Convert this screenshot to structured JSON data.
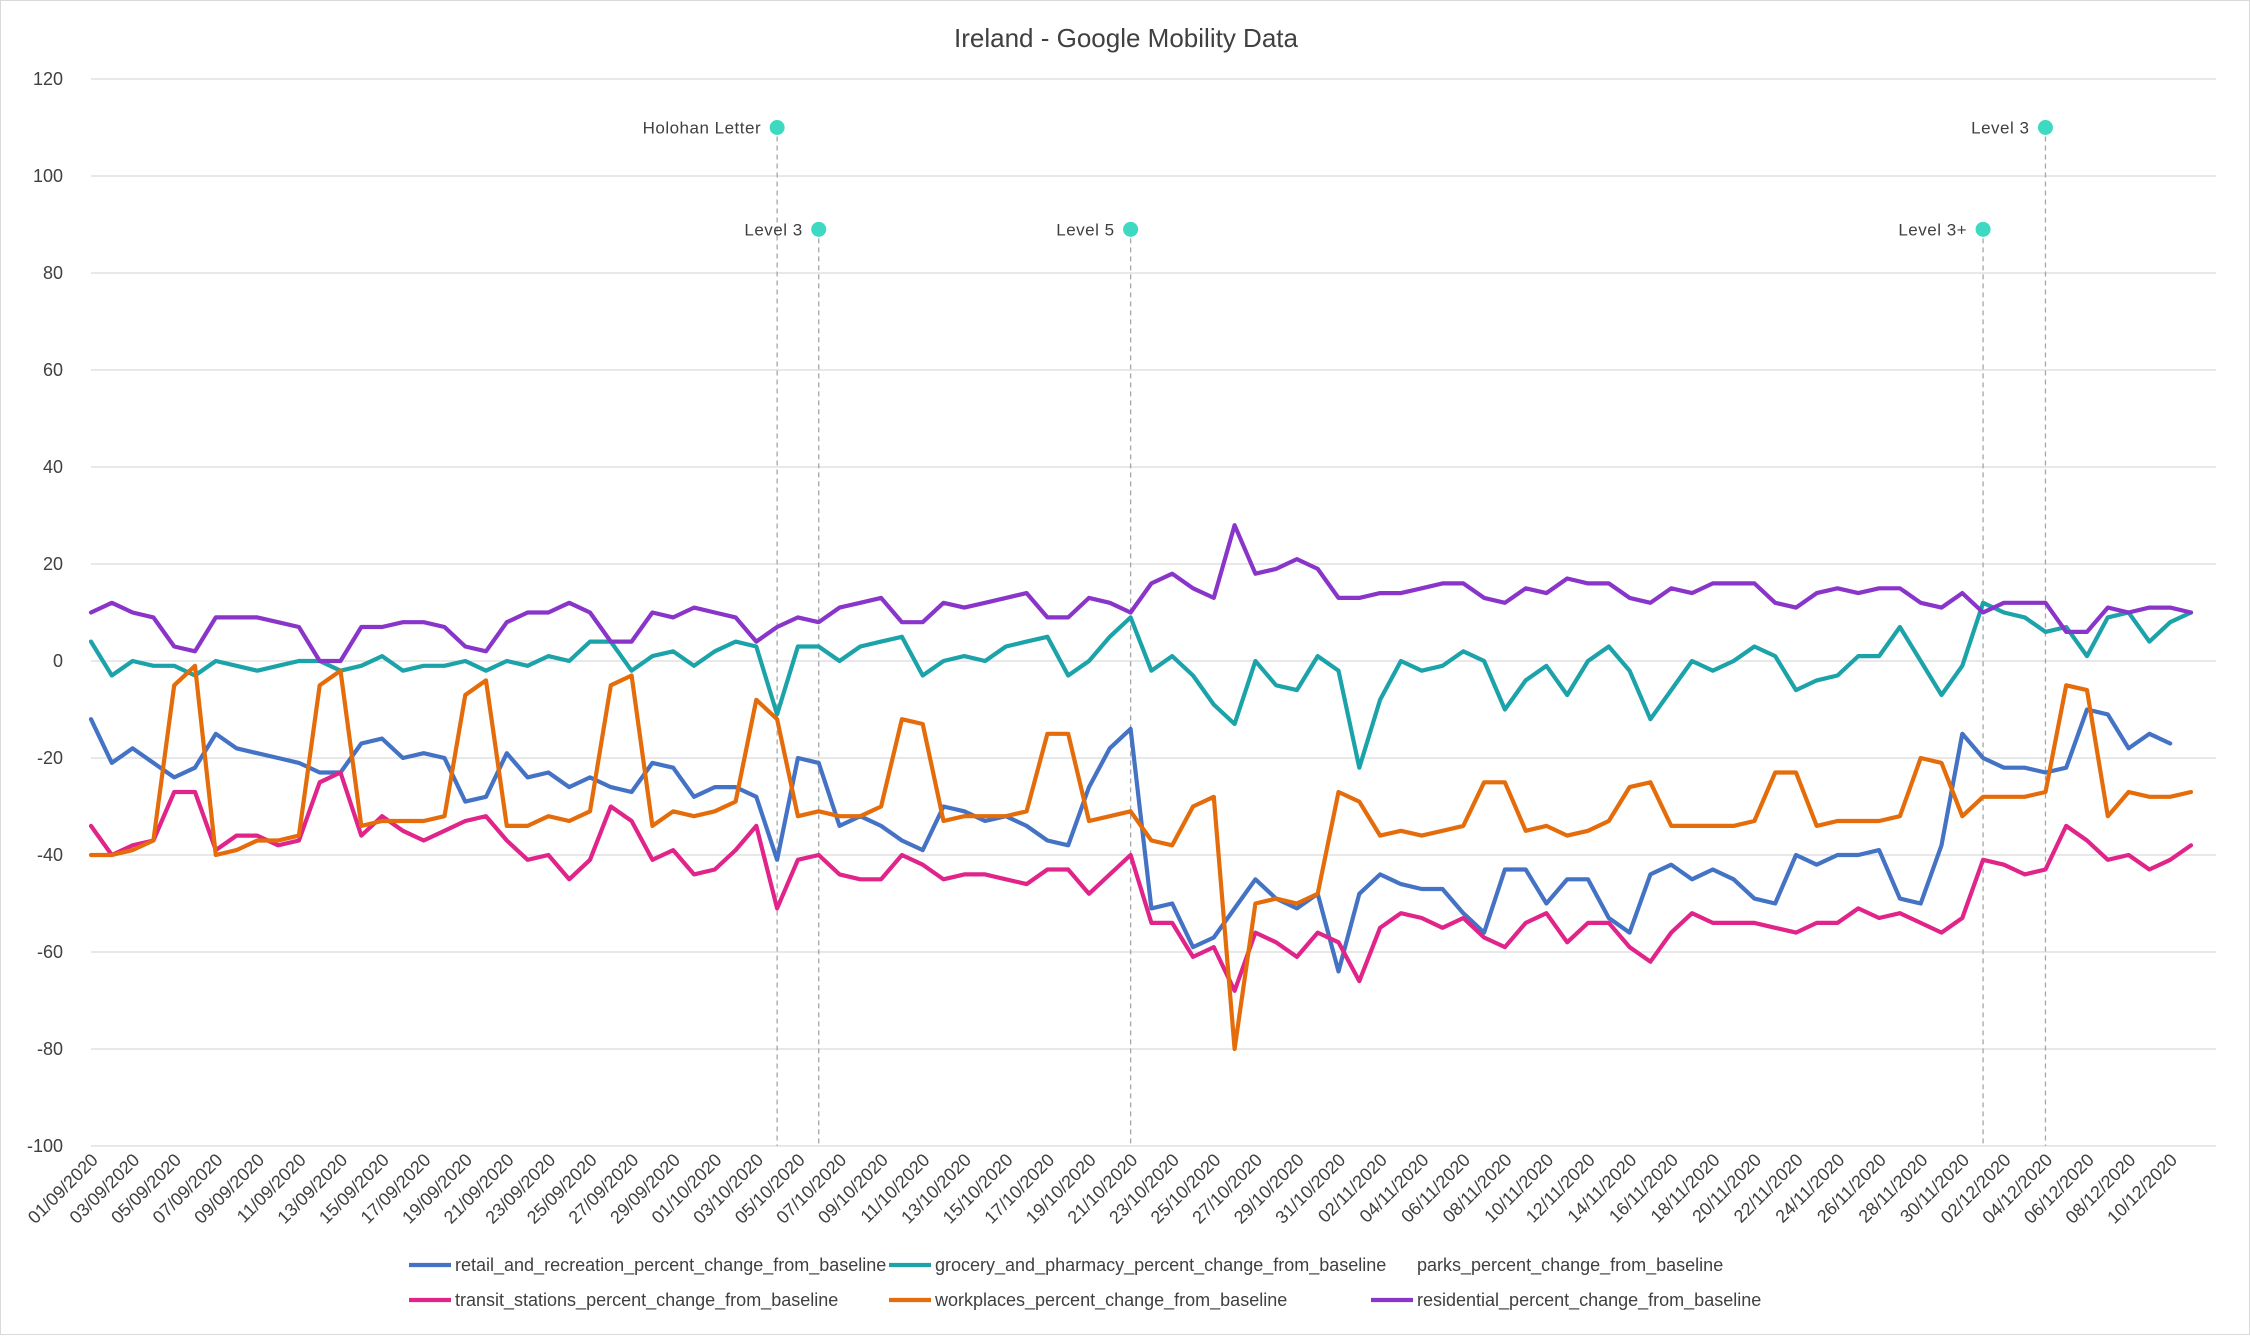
{
  "chart_data": {
    "type": "line",
    "title": "Ireland - Google Mobility Data",
    "xlabel": "",
    "ylabel": "",
    "ylim": [
      -100,
      120
    ],
    "yticks": [
      -100,
      -80,
      -60,
      -40,
      -20,
      0,
      20,
      40,
      60,
      80,
      100,
      120
    ],
    "grid": true,
    "legend_position": "bottom",
    "x_start": "01/09/2020",
    "x_tick_labels": [
      "01/09/2020",
      "03/09/2020",
      "05/09/2020",
      "07/09/2020",
      "09/09/2020",
      "11/09/2020",
      "13/09/2020",
      "15/09/2020",
      "17/09/2020",
      "19/09/2020",
      "21/09/2020",
      "23/09/2020",
      "25/09/2020",
      "27/09/2020",
      "29/09/2020",
      "01/10/2020",
      "03/10/2020",
      "05/10/2020",
      "07/10/2020",
      "09/10/2020",
      "11/10/2020",
      "13/10/2020",
      "15/10/2020",
      "17/10/2020",
      "19/10/2020",
      "21/10/2020",
      "23/10/2020",
      "25/10/2020",
      "27/10/2020",
      "29/10/2020",
      "31/10/2020",
      "02/11/2020",
      "04/11/2020",
      "06/11/2020",
      "08/11/2020",
      "10/11/2020",
      "12/11/2020",
      "14/11/2020",
      "16/11/2020",
      "18/11/2020",
      "20/11/2020",
      "22/11/2020",
      "24/11/2020",
      "26/11/2020",
      "28/11/2020",
      "30/11/2020",
      "02/12/2020",
      "04/12/2020",
      "06/12/2020",
      "08/12/2020",
      "10/12/2020"
    ],
    "series": [
      {
        "name": "retail_and_recreation_percent_change_from_baseline",
        "color": "#4472c4",
        "values": [
          -12,
          -21,
          -18,
          -21,
          -24,
          -22,
          -15,
          -18,
          -19,
          -20,
          -21,
          -23,
          -23,
          -17,
          -16,
          -20,
          -19,
          -20,
          -29,
          -28,
          -19,
          -24,
          -23,
          -26,
          -24,
          -26,
          -27,
          -21,
          -22,
          -28,
          -26,
          -26,
          -28,
          -41,
          -20,
          -21,
          -34,
          -32,
          -34,
          -37,
          -39,
          -30,
          -31,
          -33,
          -32,
          -34,
          -37,
          -38,
          -26,
          -18,
          -14,
          -51,
          -50,
          -59,
          -57,
          -51,
          -45,
          -49,
          -51,
          -48,
          -64,
          -48,
          -44,
          -46,
          -47,
          -47,
          -52,
          -56,
          -43,
          -43,
          -50,
          -45,
          -45,
          -53,
          -56,
          -44,
          -42,
          -45,
          -43,
          -45,
          -49,
          -50,
          -40,
          -42,
          -40,
          -40,
          -39,
          -49,
          -50,
          -38,
          -15,
          -20,
          -22,
          -22,
          -23,
          -22,
          -10,
          -11,
          -18,
          -15,
          -17
        ]
      },
      {
        "name": "grocery_and_pharmacy_percent_change_from_baseline",
        "color": "#1ba3a9",
        "values": [
          4,
          -3,
          0,
          -1,
          -1,
          -3,
          0,
          -1,
          -2,
          -1,
          0,
          0,
          -2,
          -1,
          1,
          -2,
          -1,
          -1,
          0,
          -2,
          0,
          -1,
          1,
          0,
          4,
          4,
          -2,
          1,
          2,
          -1,
          2,
          4,
          3,
          -11,
          3,
          3,
          0,
          3,
          4,
          5,
          -3,
          0,
          1,
          0,
          3,
          4,
          5,
          -3,
          0,
          5,
          9,
          -2,
          1,
          -3,
          -9,
          -13,
          0,
          -5,
          -6,
          1,
          -2,
          -22,
          -8,
          0,
          -2,
          -1,
          2,
          0,
          -10,
          -4,
          -1,
          -7,
          0,
          3,
          -2,
          -12,
          -6,
          0,
          -2,
          0,
          3,
          1,
          -6,
          -4,
          -3,
          1,
          1,
          7,
          0,
          -7,
          -1,
          12,
          10,
          9,
          6,
          7,
          1,
          9,
          10,
          4,
          8,
          10
        ]
      },
      {
        "name": "parks_percent_change_from_baseline",
        "color": "#a5a5a5",
        "values": []
      },
      {
        "name": "transit_stations_percent_change_from_baseline",
        "color": "#e0248a",
        "values": [
          -34,
          -40,
          -38,
          -37,
          -27,
          -27,
          -39,
          -36,
          -36,
          -38,
          -37,
          -25,
          -23,
          -36,
          -32,
          -35,
          -37,
          -35,
          -33,
          -32,
          -37,
          -41,
          -40,
          -45,
          -41,
          -30,
          -33,
          -41,
          -39,
          -44,
          -43,
          -39,
          -34,
          -51,
          -41,
          -40,
          -44,
          -45,
          -45,
          -40,
          -42,
          -45,
          -44,
          -44,
          -45,
          -46,
          -43,
          -43,
          -48,
          -44,
          -40,
          -54,
          -54,
          -61,
          -59,
          -68,
          -56,
          -58,
          -61,
          -56,
          -58,
          -66,
          -55,
          -52,
          -53,
          -55,
          -53,
          -57,
          -59,
          -54,
          -52,
          -58,
          -54,
          -54,
          -59,
          -62,
          -56,
          -52,
          -54,
          -54,
          -54,
          -55,
          -56,
          -54,
          -54,
          -51,
          -53,
          -52,
          -54,
          -56,
          -53,
          -41,
          -42,
          -44,
          -43,
          -34,
          -37,
          -41,
          -40,
          -43,
          -41,
          -38
        ]
      },
      {
        "name": "workplaces_percent_change_from_baseline",
        "color": "#e46c0a",
        "values": [
          -40,
          -40,
          -39,
          -37,
          -5,
          -1,
          -40,
          -39,
          -37,
          -37,
          -36,
          -5,
          -2,
          -34,
          -33,
          -33,
          -33,
          -32,
          -7,
          -4,
          -34,
          -34,
          -32,
          -33,
          -31,
          -5,
          -3,
          -34,
          -31,
          -32,
          -31,
          -29,
          -8,
          -12,
          -32,
          -31,
          -32,
          -32,
          -30,
          -12,
          -13,
          -33,
          -32,
          -32,
          -32,
          -31,
          -15,
          -15,
          -33,
          -32,
          -31,
          -37,
          -38,
          -30,
          -28,
          -80,
          -50,
          -49,
          -50,
          -48,
          -27,
          -29,
          -36,
          -35,
          -36,
          -35,
          -34,
          -25,
          -25,
          -35,
          -34,
          -36,
          -35,
          -33,
          -26,
          -25,
          -34,
          -34,
          -34,
          -34,
          -33,
          -23,
          -23,
          -34,
          -33,
          -33,
          -33,
          -32,
          -20,
          -21,
          -32,
          -28,
          -28,
          -28,
          -27,
          -5,
          -6,
          -32,
          -27,
          -28,
          -28,
          -27
        ]
      },
      {
        "name": "residential_percent_change_from_baseline",
        "color": "#8a35c9",
        "values": [
          10,
          12,
          10,
          9,
          3,
          2,
          9,
          9,
          9,
          8,
          7,
          0,
          0,
          7,
          7,
          8,
          8,
          7,
          3,
          2,
          8,
          10,
          10,
          12,
          10,
          4,
          4,
          10,
          9,
          11,
          10,
          9,
          4,
          7,
          9,
          8,
          11,
          12,
          13,
          8,
          8,
          12,
          11,
          12,
          13,
          14,
          9,
          9,
          13,
          12,
          10,
          16,
          18,
          15,
          13,
          28,
          18,
          19,
          21,
          19,
          13,
          13,
          14,
          14,
          15,
          16,
          16,
          13,
          12,
          15,
          14,
          17,
          16,
          16,
          13,
          12,
          15,
          14,
          16,
          16,
          16,
          12,
          11,
          14,
          15,
          14,
          15,
          15,
          12,
          11,
          14,
          10,
          12,
          12,
          12,
          6,
          6,
          11,
          10,
          11,
          11,
          10
        ]
      }
    ],
    "annotations": [
      {
        "label": "Holohan Letter",
        "x_index": 33,
        "y": 110
      },
      {
        "label": "Level 3",
        "x_index": 35,
        "y": 89
      },
      {
        "label": "Level 5",
        "x_index": 50,
        "y": 89
      },
      {
        "label": "Level 3+",
        "x_index": 91,
        "y": 89
      },
      {
        "label": "Level 3",
        "x_index": 94,
        "y": 110
      }
    ],
    "annotation_color": "#3dd9c1"
  }
}
